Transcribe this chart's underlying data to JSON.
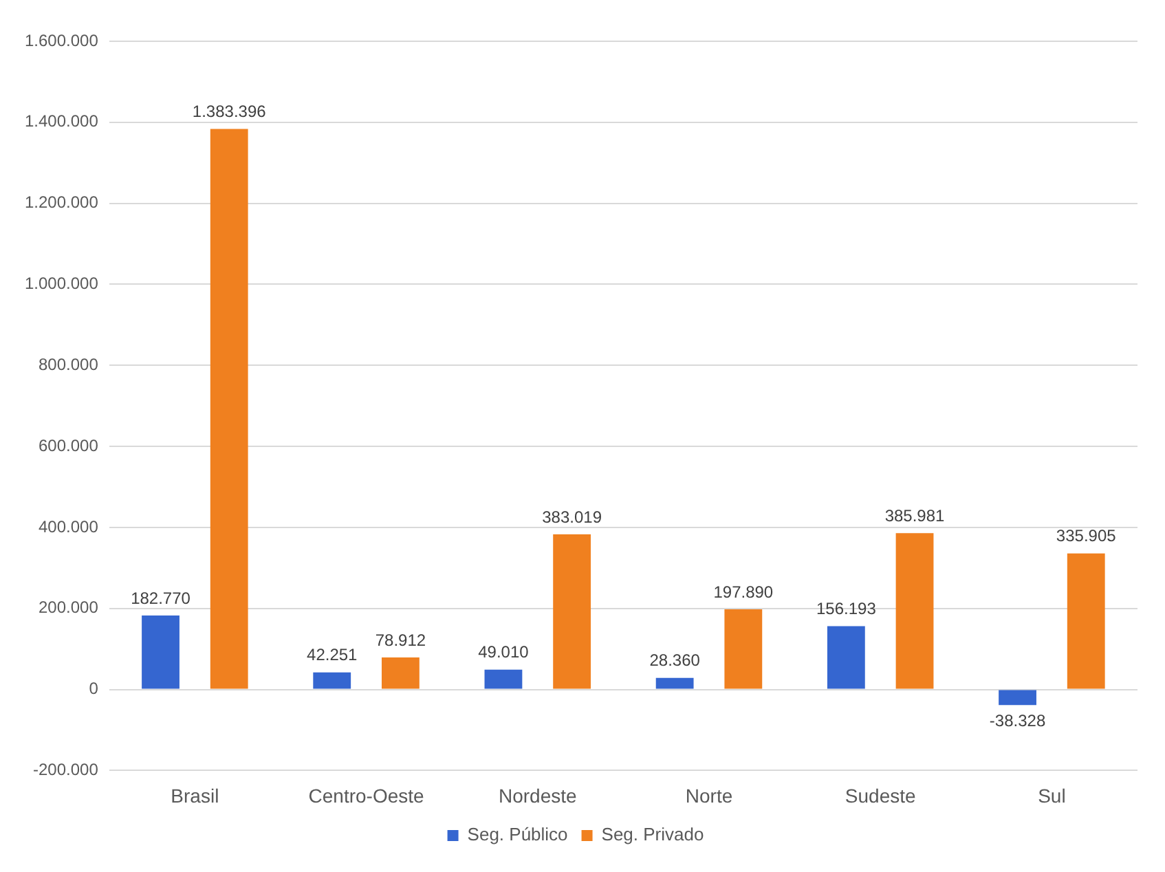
{
  "chart_data": {
    "type": "bar",
    "categories": [
      "Brasil",
      "Centro-Oeste",
      "Nordeste",
      "Norte",
      "Sudeste",
      "Sul"
    ],
    "series": [
      {
        "name": "Seg. Público",
        "color": "#3566d0",
        "values": [
          182770,
          42251,
          49010,
          28360,
          156193,
          -38328
        ],
        "value_labels": [
          "182.770",
          "42.251",
          "49.010",
          "28.360",
          "156.193",
          "-38.328"
        ]
      },
      {
        "name": "Seg. Privado",
        "color": "#f0801f",
        "values": [
          1383396,
          78912,
          383019,
          197890,
          385981,
          335905
        ],
        "value_labels": [
          "1.383.396",
          "78.912",
          "383.019",
          "197.890",
          "385.981",
          "335.905"
        ]
      }
    ],
    "ylim": [
      -200000,
      1600000
    ],
    "yticks": [
      {
        "value": -200000,
        "label": "-200.000"
      },
      0,
      {
        "value": 200000,
        "label": "200.000"
      },
      {
        "value": 400000,
        "label": "400.000"
      },
      {
        "value": 600000,
        "label": "600.000"
      },
      {
        "value": 800000,
        "label": "800.000"
      },
      {
        "value": 1000000,
        "label": "1.000.000"
      },
      {
        "value": 1200000,
        "label": "1.200.000"
      },
      {
        "value": 1400000,
        "label": "1.400.000"
      },
      {
        "value": 1600000,
        "label": "1.600.000"
      }
    ],
    "grid": "y",
    "legend": "bottom"
  }
}
